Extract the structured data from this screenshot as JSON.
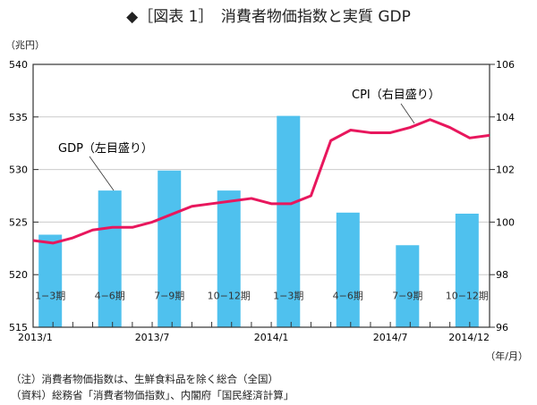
{
  "title": "◆［図表 1］　消費者物価指数と実質 GDP",
  "left_unit": "（兆円）",
  "x_unit": "（年/月）",
  "notes": [
    "（注）消費者物価指数は、生鮮食料品を除く総合（全国）",
    "（資料）総務省「消費者物価指数」、内閣府「国民経済計算」"
  ],
  "chart_data": {
    "type": "bar+line",
    "title": "消費者物価指数と実質 GDP",
    "ylim_left": [
      515,
      540
    ],
    "ylim_right": [
      96,
      106
    ],
    "yticks_left": [
      "515",
      "520",
      "525",
      "530",
      "535",
      "540"
    ],
    "yticks_right": [
      "96",
      "98",
      "100",
      "102",
      "104",
      "106"
    ],
    "xticks": [
      {
        "label": "2013/1",
        "month": 0
      },
      {
        "label": "2013/7",
        "month": 6
      },
      {
        "label": "2014/1",
        "month": 12
      },
      {
        "label": "2014/7",
        "month": 18
      },
      {
        "label": "2014/12",
        "month": 23
      }
    ],
    "grid": true,
    "gdp": {
      "name": "GDP（左目盛り）",
      "color": "#4fc1ee",
      "categories": [
        "1−3期",
        "4−6期",
        "7−9期",
        "10−12期",
        "1−3期",
        "4−6期",
        "7−9期",
        "10−12期"
      ],
      "values": [
        523.8,
        528.0,
        529.9,
        528.0,
        535.1,
        525.9,
        522.8,
        525.8
      ]
    },
    "cpi": {
      "name": "CPI（右目盛り）",
      "color": "#e8175d",
      "values": [
        99.3,
        99.2,
        99.4,
        99.7,
        99.8,
        99.8,
        100.0,
        100.3,
        100.6,
        100.7,
        100.8,
        100.9,
        100.7,
        100.7,
        101.0,
        103.1,
        103.5,
        103.4,
        103.4,
        103.6,
        103.9,
        103.6,
        103.2,
        103.3
      ]
    }
  }
}
